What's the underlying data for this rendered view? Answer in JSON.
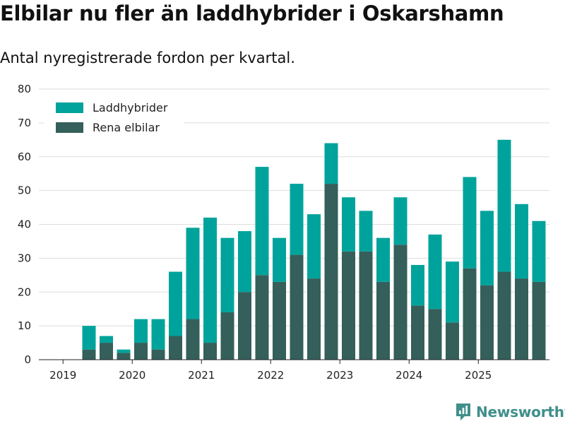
{
  "title": "Elbilar nu fler än laddhybrider i Oskarshamn",
  "subtitle": "Antal nyregistrerade fordon per kvartal.",
  "brand": "Newsworthy",
  "colors": {
    "laddhybrider": "#00a39b",
    "elbilar": "#345f5b",
    "grid": "#dddddd",
    "brand": "#3f8f8a"
  },
  "chart_data": {
    "type": "bar",
    "stacked": true,
    "categories": [
      "2019 Q1",
      "2019 Q2",
      "2019 Q3",
      "2019 Q4",
      "2020 Q1",
      "2020 Q2",
      "2020 Q3",
      "2020 Q4",
      "2021 Q1",
      "2021 Q2",
      "2021 Q3",
      "2021 Q4",
      "2022 Q1",
      "2022 Q2",
      "2022 Q3",
      "2022 Q4",
      "2023 Q1",
      "2023 Q2",
      "2023 Q3",
      "2023 Q4",
      "2024 Q1",
      "2024 Q2",
      "2024 Q3",
      "2024 Q4",
      "2025 Q1",
      "2025 Q2",
      "2025 Q3",
      "2025 Q4"
    ],
    "series": [
      {
        "name": "Rena elbilar",
        "values": [
          0,
          3,
          5,
          2,
          5,
          3,
          7,
          12,
          5,
          14,
          20,
          25,
          23,
          31,
          24,
          52,
          32,
          32,
          23,
          34,
          16,
          15,
          11,
          27,
          22,
          26,
          24,
          23
        ]
      },
      {
        "name": "Laddhybrider",
        "values": [
          0,
          7,
          2,
          1,
          7,
          9,
          19,
          27,
          37,
          22,
          18,
          32,
          13,
          21,
          19,
          12,
          16,
          12,
          13,
          14,
          12,
          22,
          18,
          27,
          22,
          39,
          22,
          18
        ]
      }
    ],
    "x_tick_labels": [
      "2019",
      "2020",
      "2021",
      "2022",
      "2023",
      "2024",
      "2025"
    ],
    "y_ticks": [
      "0",
      "10",
      "20",
      "30",
      "40",
      "50",
      "60",
      "70",
      "80"
    ],
    "ylim": [
      0,
      80
    ],
    "legend": [
      "Laddhybrider",
      "Rena elbilar"
    ],
    "legend_position": "top-left",
    "title": "Elbilar nu fler än laddhybrider i Oskarshamn",
    "xlabel": "",
    "ylabel": ""
  }
}
